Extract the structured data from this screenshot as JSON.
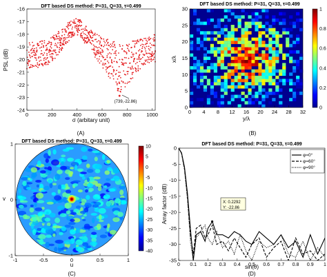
{
  "panels": [
    {
      "id": "A",
      "caption": "(A)",
      "title": "DFT based DS method: P=31, Q=33, τ=0.499",
      "xlabel": "σ (arbitary unit)",
      "ylabel": "PSL (dB)",
      "annotation": "(739,-22.86)"
    },
    {
      "id": "B",
      "caption": "(B)",
      "title": "DFT based DS method: P=31, Q=33, τ=0.499",
      "xlabel": "y/λ",
      "ylabel": "x/λ"
    },
    {
      "id": "C",
      "caption": "(C)",
      "title": "DFT  based DS method: P=31, Q=33, τ=0.499",
      "xlabel": "u",
      "ylabel": "v"
    },
    {
      "id": "D",
      "caption": "(D)",
      "title": "DFT based DS method: P=31, Q=33, τ=0.499",
      "xlabel": "sin(θ)",
      "ylabel": "Array factor (dB)",
      "datatip": [
        "X: 0.2292",
        "Y: -22.86"
      ]
    }
  ],
  "chart_data": [
    {
      "type": "scatter",
      "title": "DFT based DS method: P=31, Q=33, τ=0.499",
      "xlabel": "σ (arbitary unit)",
      "ylabel": "PSL (dB)",
      "xlim": [
        0,
        1024
      ],
      "ylim": [
        -24,
        -16
      ],
      "xticks": [
        0,
        200,
        400,
        600,
        800,
        1000
      ],
      "yticks": [
        -16,
        -17,
        -18,
        -19,
        -20,
        -21,
        -22,
        -23,
        -24
      ],
      "color": "#e41a1c",
      "marker": "dot",
      "envelope": {
        "sigma": [
          0,
          50,
          100,
          150,
          200,
          250,
          300,
          350,
          390,
          420,
          450,
          500,
          550,
          600,
          650,
          700,
          739,
          780,
          850,
          900,
          950,
          1000,
          1024
        ],
        "upper": [
          -18.6,
          -18.5,
          -18.6,
          -18.4,
          -18.2,
          -17.8,
          -17.3,
          -16.9,
          -16.7,
          -16.8,
          -17.2,
          -17.5,
          -17.9,
          -18.2,
          -18.4,
          -18.6,
          -18.8,
          -18.9,
          -18.5,
          -18.4,
          -18.2,
          -18.1,
          -18.0
        ],
        "lower": [
          -20.9,
          -20.7,
          -20.6,
          -20.5,
          -20.2,
          -19.6,
          -19.0,
          -18.4,
          -18.0,
          -18.2,
          -18.6,
          -19.2,
          -19.9,
          -20.6,
          -21.3,
          -22.0,
          -22.86,
          -22.3,
          -21.5,
          -20.8,
          -20.4,
          -20.3,
          -20.2
        ]
      },
      "highlight": {
        "x": 739,
        "y": -22.86
      }
    },
    {
      "type": "heatmap",
      "title": "DFT based DS method: P=31, Q=33, τ=0.499",
      "xlabel": "y/λ",
      "ylabel": "x/λ",
      "xlim": [
        0,
        32
      ],
      "ylim": [
        0,
        30
      ],
      "xticks": [
        0,
        4,
        8,
        12,
        16,
        20,
        24,
        28,
        32
      ],
      "yticks": [
        0,
        5,
        10,
        15,
        20,
        25,
        30
      ],
      "grid_size": [
        33,
        31
      ],
      "colorbar": {
        "min": 0,
        "max": 1,
        "ticks": [
          0,
          0.2,
          0.4,
          0.6,
          0.8,
          1
        ],
        "colormap": "jet"
      },
      "pattern": "excitation density peaked near (16,15) and decreasing toward the edges"
    },
    {
      "type": "heatmap",
      "title": "DFT  based DS method: P=31, Q=33, τ=0.499",
      "xlabel": "u",
      "ylabel": "v",
      "xlim": [
        -1,
        1
      ],
      "ylim": [
        -1,
        1
      ],
      "xticks": [
        -1,
        -0.5,
        0,
        0.5,
        1
      ],
      "yticks": [
        -1,
        0,
        1
      ],
      "colorbar": {
        "min": -40,
        "max": 10,
        "ticks": [
          10,
          5,
          0,
          -5,
          -10,
          -15,
          -20,
          -25,
          -30,
          -35,
          -40
        ],
        "colormap": "jet"
      },
      "region": "unit circle",
      "peak": {
        "u": 0,
        "v": 0,
        "value": 10
      },
      "background_level": -25
    },
    {
      "type": "line",
      "title": "DFT based DS method: P=31, Q=33, τ=0.499",
      "xlabel": "sin(θ)",
      "ylabel": "Array factor (dB)",
      "xlim": [
        0,
        1
      ],
      "ylim": [
        -35,
        0
      ],
      "xticks": [
        0,
        0.1,
        0.2,
        0.3,
        0.4,
        0.5,
        0.6,
        0.7,
        0.8,
        0.9,
        1
      ],
      "yticks": [
        0,
        -5,
        -10,
        -15,
        -20,
        -25,
        -30,
        -35
      ],
      "legend": "top-right",
      "x": [
        0,
        0.02,
        0.04,
        0.06,
        0.08,
        0.1,
        0.12,
        0.15,
        0.18,
        0.2,
        0.23,
        0.26,
        0.3,
        0.34,
        0.38,
        0.42,
        0.46,
        0.5,
        0.55,
        0.6,
        0.65,
        0.7,
        0.75,
        0.8,
        0.85,
        0.9,
        0.95,
        1.0
      ],
      "series": [
        {
          "name": "φ=0°",
          "style": "solid",
          "values": [
            0,
            -1.5,
            -6,
            -14,
            -25,
            -35,
            -27,
            -26,
            -29,
            -25,
            -22.86,
            -27,
            -27,
            -28,
            -26,
            -27,
            -29,
            -30,
            -26,
            -28,
            -30,
            -27,
            -31,
            -29,
            -34,
            -27,
            -33,
            -28
          ]
        },
        {
          "name": "φ=60°",
          "style": "dashed",
          "values": [
            0,
            -1.6,
            -6.5,
            -15,
            -27,
            -33,
            -25,
            -24,
            -28,
            -27,
            -24,
            -30,
            -29,
            -32,
            -28,
            -31,
            -34,
            -30,
            -28,
            -34,
            -31,
            -29,
            -35,
            -28,
            -33,
            -32,
            -35,
            -33
          ]
        },
        {
          "name": "φ=90°",
          "style": "dotted",
          "values": [
            0,
            -1.7,
            -7,
            -16,
            -29,
            -35,
            -28,
            -26,
            -24,
            -28,
            -30,
            -26,
            -31,
            -29,
            -33,
            -27,
            -32,
            -35,
            -29,
            -31,
            -30,
            -27,
            -33,
            -34,
            -29,
            -35,
            -31,
            -34
          ]
        }
      ],
      "datatip": {
        "x": 0.2292,
        "y": -22.86
      }
    }
  ]
}
